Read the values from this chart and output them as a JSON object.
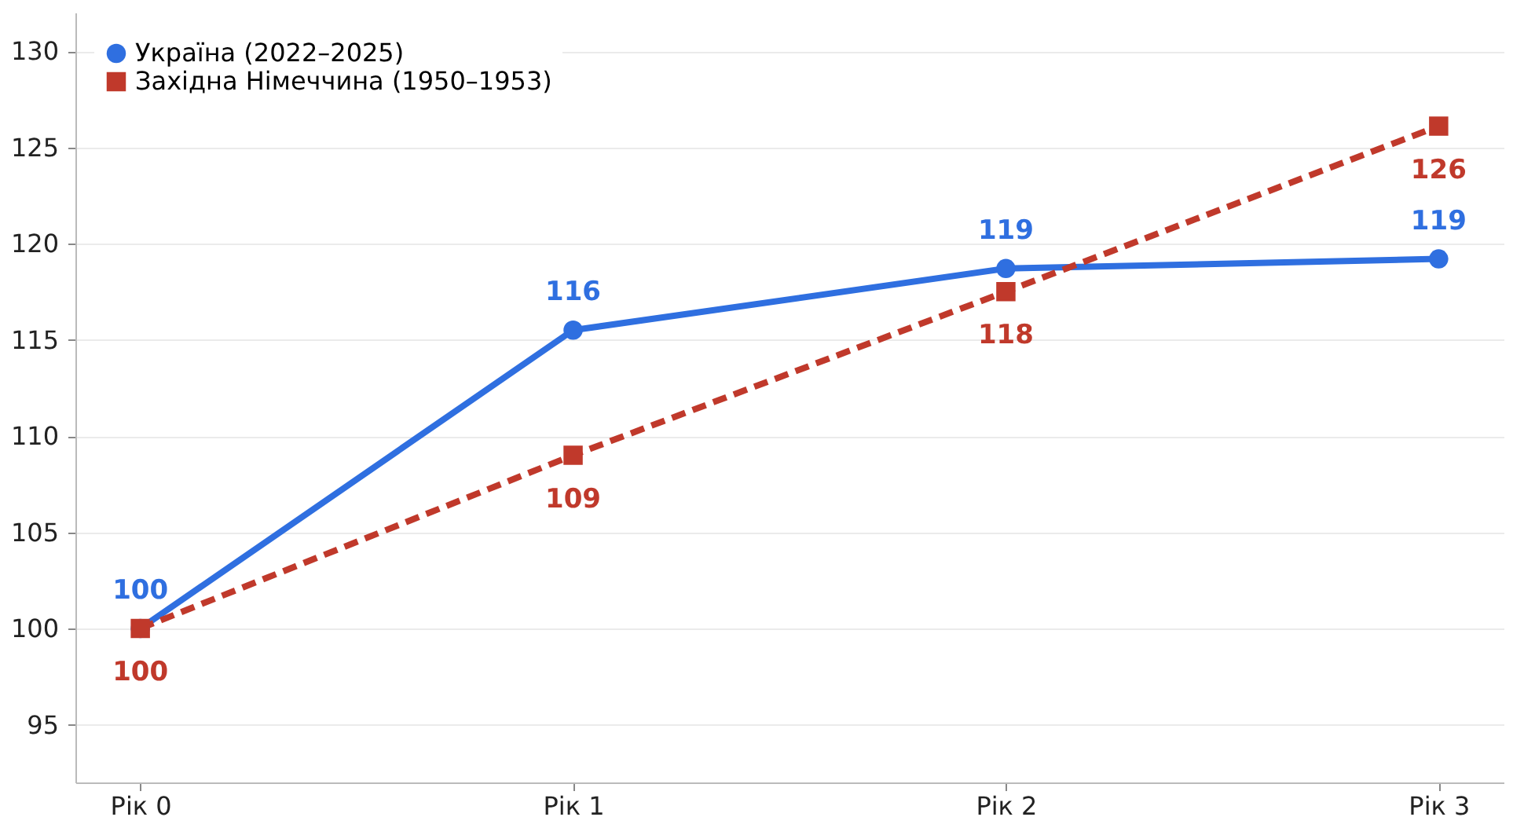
{
  "chart_data": {
    "type": "line",
    "categories": [
      "Рік 0",
      "Рік 1",
      "Рік 2",
      "Рік 3"
    ],
    "series": [
      {
        "name": "Україна (2022–2025)",
        "color": "#2f6fe0",
        "values": [
          100,
          115.5,
          118.7,
          119.2
        ],
        "value_labels": [
          "100",
          "116",
          "119",
          "119"
        ],
        "marker": "circle",
        "line_style": "solid"
      },
      {
        "name": "Західна Німеччина (1950–1953)",
        "color": "#c0392b",
        "values": [
          100,
          109.0,
          117.5,
          126.1
        ],
        "value_labels": [
          "100",
          "109",
          "118",
          "126"
        ],
        "marker": "square",
        "line_style": "dashed"
      }
    ],
    "ylim": [
      92,
      132
    ],
    "yticks": [
      95,
      100,
      105,
      110,
      115,
      120,
      125,
      130
    ],
    "grid": "y",
    "legend": "top left"
  }
}
